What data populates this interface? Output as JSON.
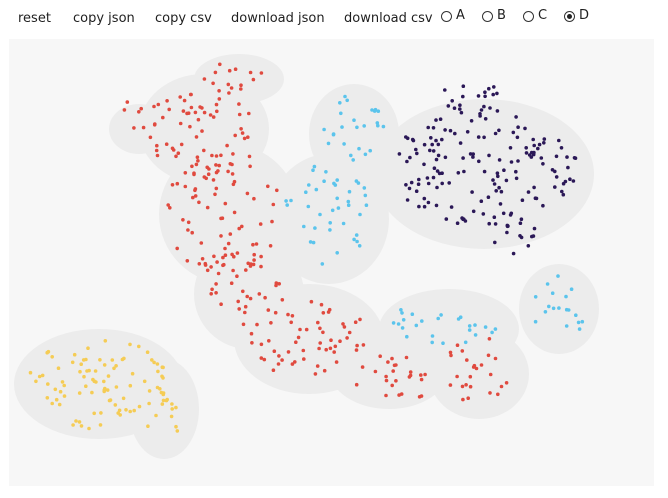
{
  "toolbar": {
    "reset": "reset",
    "copy_json": "copy json",
    "copy_csv": "copy csv",
    "download_json": "download json",
    "download_csv": "download csv"
  },
  "options": {
    "selected": "D",
    "items": [
      {
        "label": "A"
      },
      {
        "label": "B"
      },
      {
        "label": "C"
      },
      {
        "label": "D"
      }
    ]
  },
  "plot": {
    "background": "#f7f7f7",
    "hull_color": "#ececec",
    "clusters": [
      {
        "name": "red",
        "color": "#e04a3f"
      },
      {
        "name": "cyan",
        "color": "#5bc4ec"
      },
      {
        "name": "purple",
        "color": "#2b1857"
      },
      {
        "name": "yellow",
        "color": "#f5cc55"
      }
    ]
  }
}
